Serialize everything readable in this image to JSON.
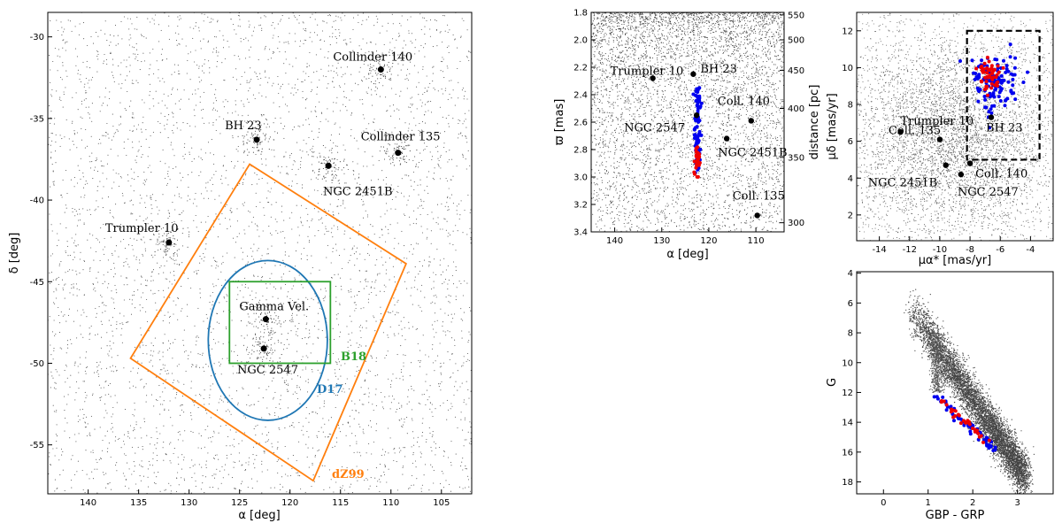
{
  "chart_data": [
    {
      "id": "sky",
      "type": "scatter",
      "xlabel": "α [deg]",
      "ylabel": "δ [deg]",
      "xlim": [
        144,
        102
      ],
      "ylim": [
        -58,
        -28.5
      ],
      "xticks": [
        140,
        135,
        130,
        125,
        120,
        115,
        110,
        105
      ],
      "yticks": [
        -30,
        -35,
        -40,
        -45,
        -50,
        -55
      ],
      "clusters": [
        {
          "name": "Collinder 140",
          "x": 111.0,
          "y": -32.0
        },
        {
          "name": "BH 23",
          "x": 123.3,
          "y": -36.3
        },
        {
          "name": "Collinder 135",
          "x": 109.3,
          "y": -37.1
        },
        {
          "name": "NGC 2451B",
          "x": 116.2,
          "y": -37.9
        },
        {
          "name": "Trumpler 10",
          "x": 132.0,
          "y": -42.6
        },
        {
          "name": "Gamma Vel.",
          "x": 122.4,
          "y": -47.3
        },
        {
          "name": "NGC 2547",
          "x": 122.6,
          "y": -49.1
        }
      ],
      "regions": [
        {
          "name": "dZ99",
          "shape": "polygon",
          "color": "#ff7f0e",
          "points": [
            [
              124.0,
              -37.8
            ],
            [
              108.5,
              -43.9
            ],
            [
              117.7,
              -57.2
            ],
            [
              135.8,
              -49.7
            ]
          ]
        },
        {
          "name": "D17",
          "shape": "circle",
          "color": "#1f77b4",
          "center": [
            122.2,
            -48.6
          ],
          "radius": 5.9
        },
        {
          "name": "B18",
          "shape": "rectangle",
          "color": "#2ca02c",
          "x": [
            126.0,
            116.0
          ],
          "y": [
            -45.0,
            -50.0
          ]
        }
      ]
    },
    {
      "id": "parallax",
      "type": "scatter",
      "xlabel": "α [deg]",
      "ylabel": "ϖ [mas]",
      "ylabel2": "distance [pc]",
      "xlim": [
        145,
        104
      ],
      "ylim": [
        3.4,
        1.8
      ],
      "xticks": [
        140,
        130,
        120,
        110
      ],
      "yticks": [
        1.8,
        2.0,
        2.2,
        2.4,
        2.6,
        2.8,
        3.0,
        3.2,
        3.4
      ],
      "yticks2": [
        550,
        500,
        450,
        400,
        350,
        300
      ],
      "clusters": [
        {
          "name": "Trumpler 10",
          "x": 131.9,
          "y": 2.28
        },
        {
          "name": "BH 23",
          "x": 123.3,
          "y": 2.25
        },
        {
          "name": "Coll. 140",
          "x": 111.0,
          "y": 2.59
        },
        {
          "name": "NGC 2547",
          "x": 122.6,
          "y": 2.55
        },
        {
          "name": "NGC 2451B",
          "x": 116.2,
          "y": 2.72
        },
        {
          "name": "Coll. 135",
          "x": 109.7,
          "y": 3.28
        }
      ]
    },
    {
      "id": "propermotion",
      "type": "scatter",
      "xlabel": "μα* [mas/yr]",
      "ylabel": "μδ [mas/yr]",
      "xlim": [
        -15.5,
        -2.5
      ],
      "ylim": [
        0.6,
        13.0
      ],
      "xticks": [
        -14,
        -12,
        -10,
        -8,
        -6,
        -4
      ],
      "yticks": [
        2,
        4,
        6,
        8,
        10,
        12
      ],
      "box": {
        "x": [
          -8.2,
          -3.4
        ],
        "y": [
          5.0,
          12.0
        ]
      },
      "clusters": [
        {
          "name": "Trumpler 10",
          "x": -12.6,
          "y": 6.5
        },
        {
          "name": "Coll. 135",
          "x": -10.0,
          "y": 6.1
        },
        {
          "name": "BH 23",
          "x": -6.6,
          "y": 7.3
        },
        {
          "name": "Coll. 140",
          "x": -8.0,
          "y": 4.8
        },
        {
          "name": "NGC 2451B",
          "x": -9.6,
          "y": 4.7
        },
        {
          "name": "NGC 2547",
          "x": -8.6,
          "y": 4.2
        }
      ]
    },
    {
      "id": "cmd",
      "type": "scatter",
      "xlabel": "GBP - GRP",
      "ylabel": "G",
      "xlim": [
        -0.6,
        3.8
      ],
      "ylim": [
        18.8,
        3.9
      ],
      "xticks": [
        0,
        1,
        2,
        3
      ],
      "yticks": [
        4,
        6,
        8,
        10,
        12,
        14,
        16,
        18
      ]
    }
  ]
}
